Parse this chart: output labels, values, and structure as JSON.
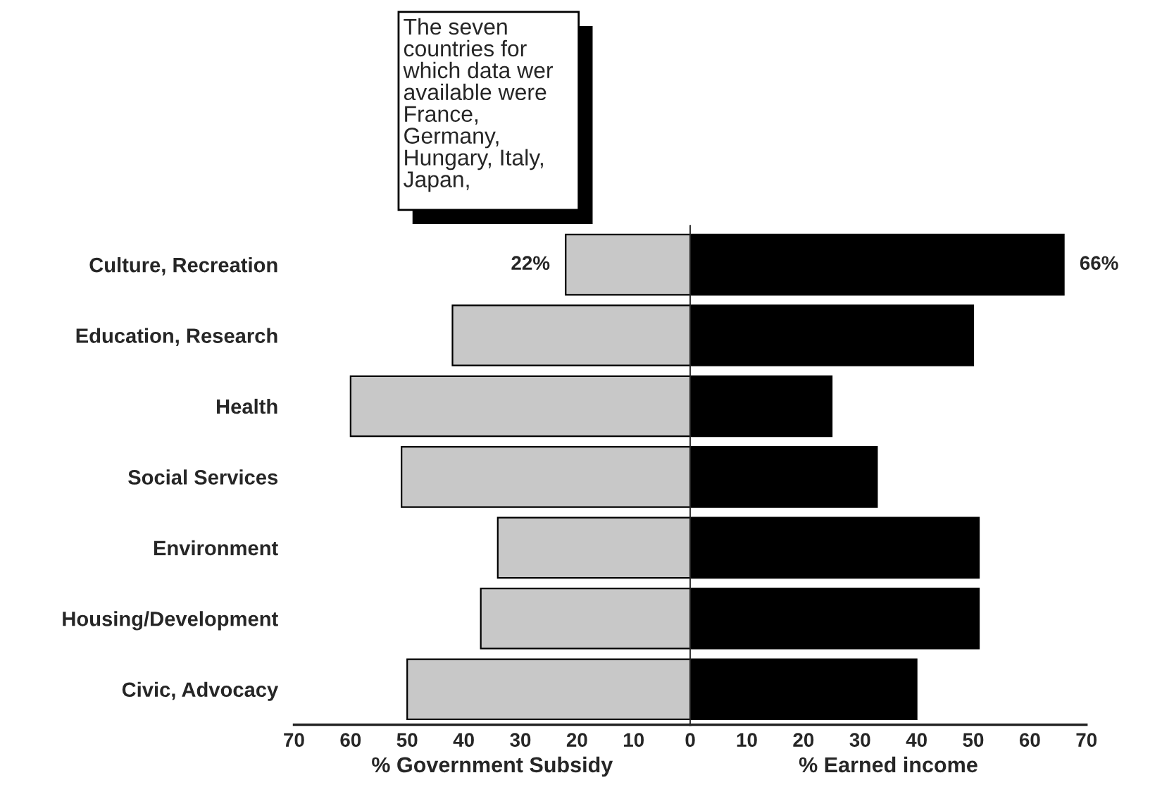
{
  "chart_data": [
    {
      "type": "bar",
      "orientation": "horizontal",
      "categories": [
        "Culture, Recreation",
        "Education, Research",
        "Health",
        "Social Services",
        "Environment",
        "Housing/Development",
        "Civic, Advocacy"
      ],
      "series": [
        {
          "color": "#c8c8c8",
          "values": [
            22,
            42,
            60,
            51,
            34,
            37,
            50
          ],
          "value_labels": [
            "22%",
            null,
            null,
            null,
            null,
            null,
            null
          ]
        }
      ],
      "xlim": [
        70,
        0
      ],
      "xticks": [
        70,
        60,
        50,
        40,
        30,
        20,
        10
      ],
      "xlabel": "% Government Subsidy",
      "annotations": [
        "The seven countries for which data wer available were France, Germany, Hungary, Italy, Japan,"
      ]
    },
    {
      "type": "bar",
      "orientation": "horizontal",
      "series": [
        {
          "color": "#000000",
          "values": [
            66,
            50,
            25,
            33,
            51,
            51,
            40
          ],
          "value_labels": [
            "66%",
            null,
            null,
            null,
            null,
            null,
            null
          ]
        }
      ],
      "xlim": [
        0,
        70
      ],
      "xticks": [
        0,
        10,
        20,
        30,
        40,
        50,
        60,
        70
      ],
      "xlabel": "% Earned income",
      "tick_labels": "x"
    }
  ]
}
